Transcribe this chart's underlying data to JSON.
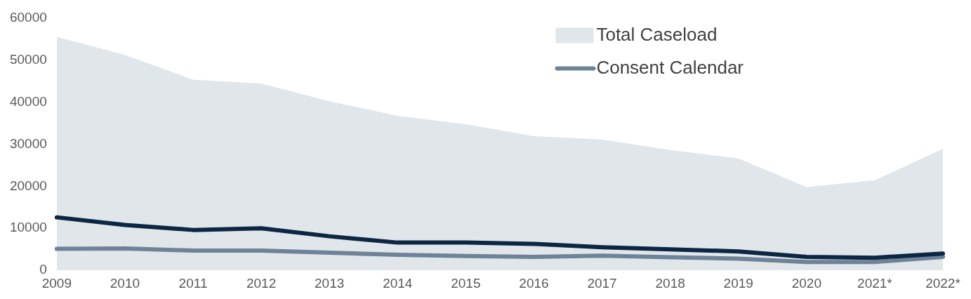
{
  "chart_data": {
    "type": "area",
    "categories": [
      "2009",
      "2010",
      "2011",
      "2012",
      "2013",
      "2014",
      "2015",
      "2016",
      "2017",
      "2018",
      "2019",
      "2020",
      "2021*",
      "2022*"
    ],
    "series": [
      {
        "name": "Total Caseload",
        "type": "area",
        "color": "#e1e6ea",
        "values": [
          55500,
          51200,
          45300,
          44400,
          40200,
          36700,
          34700,
          31900,
          31100,
          28600,
          26600,
          19800,
          21400,
          28900
        ]
      },
      {
        "type": "line",
        "color": "#0c2744",
        "values": [
          12600,
          10800,
          9600,
          10000,
          8100,
          6600,
          6600,
          6300,
          5500,
          5000,
          4500,
          3200,
          3000,
          4000
        ]
      },
      {
        "name": "Consent Calendar",
        "type": "line",
        "color": "#6f8398",
        "values": [
          5100,
          5200,
          4700,
          4700,
          4200,
          3700,
          3400,
          3200,
          3500,
          3100,
          2800,
          2000,
          2000,
          3200
        ]
      }
    ],
    "ylim": [
      0,
      60000
    ],
    "yticks": [
      0,
      10000,
      20000,
      30000,
      40000,
      50000,
      60000
    ],
    "grid": false,
    "legend": "top right",
    "line_style": "solid",
    "marker": "none"
  }
}
